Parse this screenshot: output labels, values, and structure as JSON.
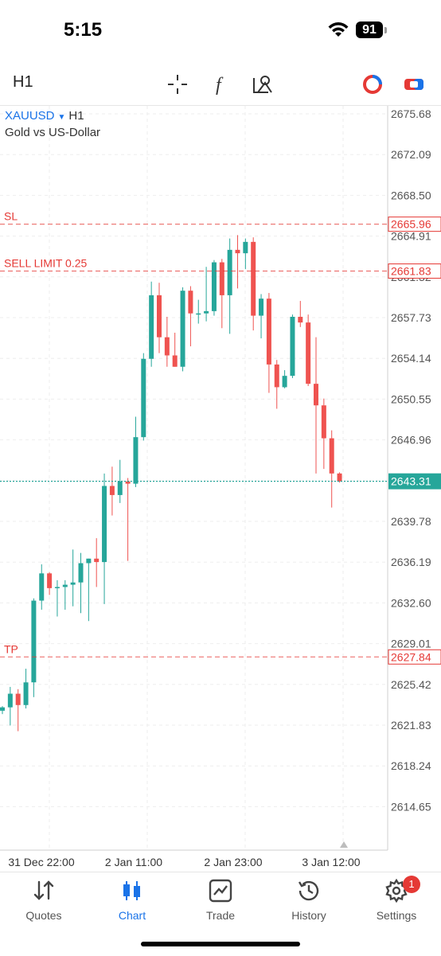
{
  "status_bar": {
    "time": "5:15",
    "battery": "91"
  },
  "toolbar": {
    "timeframe": "H1",
    "icons": [
      "crosshair-icon",
      "function-icon",
      "objects-icon",
      "color-scheme-icon",
      "trade-panel-icon"
    ]
  },
  "chart": {
    "symbol": "XAUUSD",
    "timeframe": "H1",
    "description": "Gold vs US-Dollar",
    "price_axis": [
      "2675.68",
      "2672.09",
      "2668.50",
      "2664.91",
      "2661.32",
      "2657.73",
      "2654.14",
      "2650.55",
      "2646.96",
      "2643.31",
      "2639.78",
      "2636.19",
      "2632.60",
      "2629.01",
      "2625.42",
      "2621.83",
      "2618.24",
      "2614.65"
    ],
    "time_axis": [
      "31 Dec 22:00",
      "2 Jan 11:00",
      "2 Jan 23:00",
      "3 Jan 12:00"
    ],
    "levels": [
      {
        "label": "SL",
        "price": "2665.96",
        "color": "#e53935"
      },
      {
        "label": "SELL LIMIT 0.25",
        "price": "2661.83",
        "color": "#e53935"
      },
      {
        "label": "TP",
        "price": "2627.84",
        "color": "#e53935"
      }
    ],
    "current_price": "2643.31",
    "colors": {
      "bull": "#26a69a",
      "bear": "#ef5350",
      "grid": "#eeeeee",
      "accent": "#1a73e8"
    }
  },
  "chart_data": {
    "type": "candlestick",
    "ylim": [
      2612,
      2677
    ],
    "candles": [
      {
        "o": 2623.1,
        "h": 2623.5,
        "l": 2622.8,
        "c": 2623.4
      },
      {
        "o": 2623.4,
        "h": 2625.2,
        "l": 2621.8,
        "c": 2624.6
      },
      {
        "o": 2624.6,
        "h": 2625.0,
        "l": 2621.3,
        "c": 2623.6
      },
      {
        "o": 2623.6,
        "h": 2626.8,
        "l": 2623.3,
        "c": 2625.6
      },
      {
        "o": 2625.6,
        "h": 2633.0,
        "l": 2624.3,
        "c": 2632.8
      },
      {
        "o": 2632.8,
        "h": 2636.0,
        "l": 2632.0,
        "c": 2635.2
      },
      {
        "o": 2635.2,
        "h": 2635.3,
        "l": 2633.3,
        "c": 2633.9
      },
      {
        "o": 2633.9,
        "h": 2634.6,
        "l": 2631.4,
        "c": 2634.0
      },
      {
        "o": 2634.0,
        "h": 2634.6,
        "l": 2632.0,
        "c": 2634.2
      },
      {
        "o": 2634.2,
        "h": 2637.3,
        "l": 2632.3,
        "c": 2634.4
      },
      {
        "o": 2634.4,
        "h": 2637.0,
        "l": 2631.7,
        "c": 2636.1
      },
      {
        "o": 2636.1,
        "h": 2636.5,
        "l": 2631.0,
        "c": 2636.5
      },
      {
        "o": 2636.5,
        "h": 2638.3,
        "l": 2634.0,
        "c": 2636.2
      },
      {
        "o": 2636.2,
        "h": 2644.0,
        "l": 2632.5,
        "c": 2642.9
      },
      {
        "o": 2642.9,
        "h": 2644.6,
        "l": 2640.3,
        "c": 2642.1
      },
      {
        "o": 2642.1,
        "h": 2645.2,
        "l": 2641.4,
        "c": 2643.3
      },
      {
        "o": 2643.3,
        "h": 2643.6,
        "l": 2636.3,
        "c": 2643.1
      },
      {
        "o": 2643.1,
        "h": 2649.0,
        "l": 2642.8,
        "c": 2647.2
      },
      {
        "o": 2647.2,
        "h": 2654.6,
        "l": 2646.9,
        "c": 2654.1
      },
      {
        "o": 2654.1,
        "h": 2660.9,
        "l": 2653.4,
        "c": 2659.7
      },
      {
        "o": 2659.7,
        "h": 2660.8,
        "l": 2654.6,
        "c": 2656.0
      },
      {
        "o": 2656.0,
        "h": 2657.8,
        "l": 2653.4,
        "c": 2654.4
      },
      {
        "o": 2654.4,
        "h": 2656.4,
        "l": 2653.4,
        "c": 2653.4
      },
      {
        "o": 2653.4,
        "h": 2660.4,
        "l": 2653.0,
        "c": 2660.1
      },
      {
        "o": 2660.1,
        "h": 2660.5,
        "l": 2655.2,
        "c": 2658.1
      },
      {
        "o": 2658.1,
        "h": 2659.3,
        "l": 2657.2,
        "c": 2658.1
      },
      {
        "o": 2658.1,
        "h": 2662.2,
        "l": 2657.4,
        "c": 2658.3
      },
      {
        "o": 2658.3,
        "h": 2662.8,
        "l": 2657.9,
        "c": 2662.6
      },
      {
        "o": 2662.6,
        "h": 2662.9,
        "l": 2656.8,
        "c": 2659.7
      },
      {
        "o": 2659.7,
        "h": 2664.7,
        "l": 2656.3,
        "c": 2663.7
      },
      {
        "o": 2663.7,
        "h": 2665.0,
        "l": 2660.3,
        "c": 2663.4
      },
      {
        "o": 2663.4,
        "h": 2664.7,
        "l": 2662.0,
        "c": 2664.4
      },
      {
        "o": 2664.4,
        "h": 2664.8,
        "l": 2656.6,
        "c": 2657.9
      },
      {
        "o": 2657.9,
        "h": 2659.8,
        "l": 2655.9,
        "c": 2659.4
      },
      {
        "o": 2659.4,
        "h": 2659.9,
        "l": 2651.1,
        "c": 2653.6
      },
      {
        "o": 2653.6,
        "h": 2654.0,
        "l": 2649.7,
        "c": 2651.6
      },
      {
        "o": 2651.6,
        "h": 2653.1,
        "l": 2651.5,
        "c": 2652.6
      },
      {
        "o": 2652.6,
        "h": 2658.0,
        "l": 2652.4,
        "c": 2657.8
      },
      {
        "o": 2657.8,
        "h": 2659.2,
        "l": 2656.9,
        "c": 2657.3
      },
      {
        "o": 2657.3,
        "h": 2658.0,
        "l": 2651.7,
        "c": 2651.9
      },
      {
        "o": 2651.9,
        "h": 2656.0,
        "l": 2644.0,
        "c": 2650.0
      },
      {
        "o": 2650.0,
        "h": 2650.6,
        "l": 2644.4,
        "c": 2647.1
      },
      {
        "o": 2647.1,
        "h": 2647.8,
        "l": 2641.0,
        "c": 2644.0
      },
      {
        "o": 2644.0,
        "h": 2644.1,
        "l": 2643.2,
        "c": 2643.3
      }
    ]
  },
  "tabs": [
    {
      "label": "Quotes",
      "icon": "quotes-icon",
      "active": false
    },
    {
      "label": "Chart",
      "icon": "chart-icon",
      "active": true
    },
    {
      "label": "Trade",
      "icon": "trade-icon",
      "active": false
    },
    {
      "label": "History",
      "icon": "history-icon",
      "active": false
    },
    {
      "label": "Settings",
      "icon": "settings-icon",
      "active": false,
      "badge": "1"
    }
  ]
}
